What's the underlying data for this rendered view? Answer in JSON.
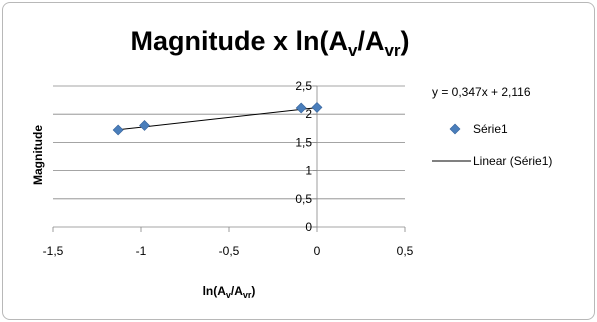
{
  "chart_data": {
    "type": "scatter",
    "title": {
      "main": "Magnitude x ln(A",
      "sub1": "v",
      "mid": "/A",
      "sub2": "vr",
      "end": ")"
    },
    "xlabel": {
      "main": "ln(A",
      "sub1": "v",
      "mid": "/A",
      "sub2": "vr",
      "end": ")"
    },
    "ylabel": "Magnitude",
    "xlim": [
      -1.5,
      0.5
    ],
    "ylim": [
      0,
      2.5
    ],
    "x_ticks": [
      "-1,5",
      "-1",
      "-0,5",
      "0",
      "0,5"
    ],
    "y_ticks": [
      "0",
      "0,5",
      "1",
      "1,5",
      "2",
      "2,5"
    ],
    "x_tick_values": [
      -1.5,
      -1.0,
      -0.5,
      0,
      0.5
    ],
    "y_tick_values": [
      0,
      0.5,
      1.0,
      1.5,
      2.0,
      2.5
    ],
    "grid": "horizontal",
    "legend_position": "right",
    "series": [
      {
        "name": "Série1",
        "marker": "diamond",
        "color": "#4a7ebb",
        "points": [
          {
            "x": -1.13,
            "y": 1.72
          },
          {
            "x": -0.98,
            "y": 1.8
          },
          {
            "x": -0.09,
            "y": 2.11
          },
          {
            "x": 0.0,
            "y": 2.12
          }
        ]
      }
    ],
    "trendline": {
      "name": "Linear (Série1)",
      "type": "linear",
      "slope": 0.347,
      "intercept": 2.116,
      "x_range": [
        -1.13,
        0.0
      ],
      "color": "#000000",
      "equation": "y = 0,347x + 2,116"
    }
  }
}
